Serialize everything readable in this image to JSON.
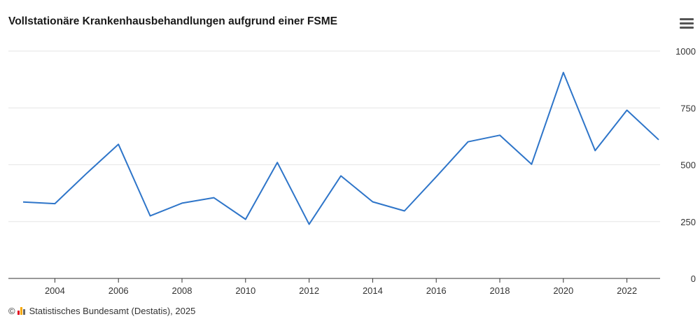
{
  "colors": {
    "line": "#2e75c9",
    "grid": "#e6e6e6",
    "axis": "#333333",
    "logo_a": "#e2001a",
    "logo_b": "#f7a800",
    "logo_c": "#666666"
  },
  "header": {
    "title": "Vollstationäre Krankenhausbehandlungen aufgrund einer FSME",
    "menu_icon": "hamburger-menu-icon"
  },
  "footer": {
    "copyright_symbol": "©",
    "source": "Statistisches Bundesamt (Destatis), 2025"
  },
  "chart_data": {
    "type": "line",
    "title": "Vollstationäre Krankenhausbehandlungen aufgrund einer FSME",
    "xlabel": "",
    "ylabel": "",
    "xlim": [
      2003,
      2023
    ],
    "ylim": [
      0,
      1000
    ],
    "x_ticks": [
      2004,
      2006,
      2008,
      2010,
      2012,
      2014,
      2016,
      2018,
      2020,
      2022
    ],
    "y_ticks": [
      0,
      250,
      500,
      750,
      1000
    ],
    "y_axis_side": "right",
    "grid": true,
    "series": [
      {
        "name": "FSME",
        "x": [
          2003,
          2004,
          2005,
          2006,
          2007,
          2008,
          2009,
          2010,
          2011,
          2012,
          2013,
          2014,
          2015,
          2016,
          2017,
          2018,
          2019,
          2020,
          2021,
          2022,
          2023
        ],
        "values": [
          336,
          329,
          462,
          590,
          275,
          331,
          355,
          260,
          510,
          238,
          451,
          337,
          297,
          447,
          601,
          630,
          502,
          906,
          562,
          740,
          610
        ]
      }
    ]
  }
}
